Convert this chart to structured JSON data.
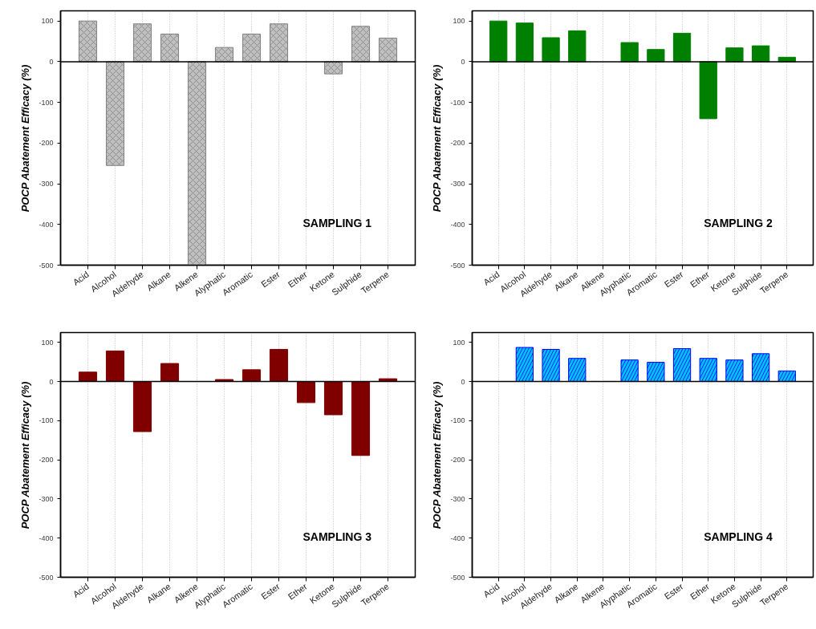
{
  "chart_data": [
    {
      "type": "bar",
      "title": "SAMPLING 1",
      "ylabel": "POCP Abatement Efficacy (%)",
      "categories": [
        "Acid",
        "Alcohol",
        "Aldehyde",
        "Alkane",
        "Alkene",
        "Alyphatic",
        "Aromatic",
        "Ester",
        "Ether",
        "Ketone",
        "Sulphide",
        "Terpene"
      ],
      "values": [
        100,
        -255,
        93,
        68,
        -500,
        35,
        68,
        93,
        null,
        -30,
        87,
        58
      ],
      "color": "#c0c0c0",
      "ylim": [
        -500,
        125
      ],
      "yticks": [
        -500,
        -400,
        -300,
        -200,
        -100,
        0,
        100
      ],
      "grid": "x",
      "ref_lines": [
        {
          "axis": "y",
          "value": 0
        }
      ]
    },
    {
      "type": "bar",
      "title": "SAMPLING 2",
      "ylabel": "POCP Abatement Efficacy (%)",
      "categories": [
        "Acid",
        "Alcohol",
        "Aldehyde",
        "Alkane",
        "Alkene",
        "Alyphatic",
        "Aromatic",
        "Ester",
        "Ether",
        "Ketone",
        "Sulphide",
        "Terpene"
      ],
      "values": [
        100,
        95,
        59,
        76,
        null,
        47,
        30,
        70,
        -140,
        34,
        39,
        11
      ],
      "color": "#008000",
      "ylim": [
        -500,
        125
      ],
      "yticks": [
        -500,
        -400,
        -300,
        -200,
        -100,
        0,
        100
      ],
      "grid": "x",
      "ref_lines": [
        {
          "axis": "y",
          "value": 0
        }
      ]
    },
    {
      "type": "bar",
      "title": "SAMPLING 3",
      "ylabel": "POCP Abatement Efficacy (%)",
      "categories": [
        "Acid",
        "Alcohol",
        "Aldehyde",
        "Alkane",
        "Alkene",
        "Alyphatic",
        "Aromatic",
        "Ester",
        "Ether",
        "Ketone",
        "Sulphide",
        "Terpene"
      ],
      "values": [
        24,
        78,
        -128,
        46,
        null,
        5,
        30,
        82,
        -54,
        -85,
        -189,
        7
      ],
      "color": "#800000",
      "ylim": [
        -500,
        125
      ],
      "yticks": [
        -500,
        -400,
        -300,
        -200,
        -100,
        0,
        100
      ],
      "grid": "x",
      "ref_lines": [
        {
          "axis": "y",
          "value": 0
        }
      ]
    },
    {
      "type": "bar",
      "title": "SAMPLING 4",
      "ylabel": "POCP Abatement Efficacy (%)",
      "categories": [
        "Acid",
        "Alcohol",
        "Aldehyde",
        "Alkane",
        "Alkene",
        "Alyphatic",
        "Aromatic",
        "Ester",
        "Ether",
        "Ketone",
        "Sulphide",
        "Terpene"
      ],
      "values": [
        null,
        87,
        82,
        59,
        null,
        55,
        49,
        84,
        59,
        55,
        71,
        27
      ],
      "color": "#00bfff",
      "ylim": [
        -500,
        125
      ],
      "yticks": [
        -500,
        -400,
        -300,
        -200,
        -100,
        0,
        100
      ],
      "grid": "x",
      "ref_lines": [
        {
          "axis": "y",
          "value": 0
        }
      ]
    }
  ]
}
